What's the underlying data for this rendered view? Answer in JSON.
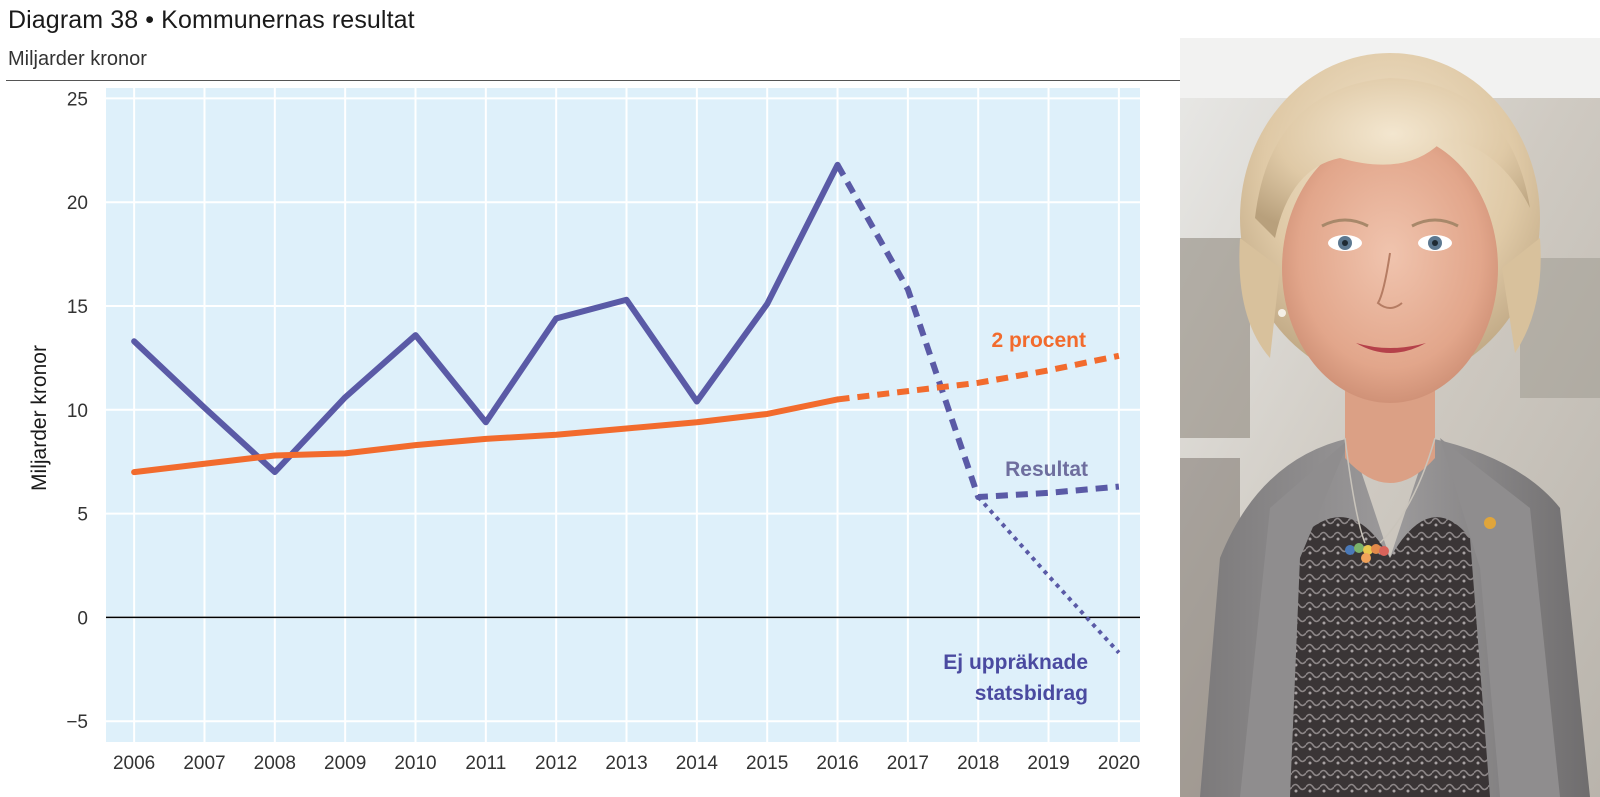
{
  "chart_data": {
    "type": "line",
    "title": "Diagram 38 • Kommunernas resultat",
    "subtitle": "Miljarder kronor",
    "ylabel": "Miljarder kronor",
    "xlabel": "",
    "ylim": [
      -6,
      25.5
    ],
    "x": [
      2006,
      2007,
      2008,
      2009,
      2010,
      2011,
      2012,
      2013,
      2014,
      2015,
      2016,
      2017,
      2018,
      2019,
      2020
    ],
    "x_tick_labels": [
      "2006",
      "2007",
      "2008",
      "2009",
      "2010",
      "2011",
      "2012",
      "2013",
      "2014",
      "2015",
      "2016",
      "2017",
      "2018",
      "2019",
      "2020"
    ],
    "y_ticks": [
      -5,
      0,
      5,
      10,
      15,
      20,
      25
    ],
    "y_tick_labels": [
      "−5",
      "0",
      "5",
      "10",
      "15",
      "20",
      "25"
    ],
    "grid": true,
    "zero_line": true,
    "series": [
      {
        "name": "Resultat",
        "color": "#5a5aa6",
        "solid": {
          "x": [
            2006,
            2007,
            2008,
            2009,
            2010,
            2011,
            2012,
            2013,
            2014,
            2015,
            2016
          ],
          "y": [
            13.3,
            10.1,
            7.0,
            10.6,
            13.6,
            9.4,
            14.4,
            15.3,
            10.4,
            15.1,
            21.8
          ]
        },
        "dashed": {
          "x": [
            2016,
            2017,
            2018,
            2019,
            2020
          ],
          "y": [
            21.8,
            15.8,
            5.8,
            6.0,
            6.3
          ]
        }
      },
      {
        "name": "2 procent",
        "color": "#f26b2d",
        "solid": {
          "x": [
            2006,
            2007,
            2008,
            2009,
            2010,
            2011,
            2012,
            2013,
            2014,
            2015,
            2016
          ],
          "y": [
            7.0,
            7.4,
            7.8,
            7.9,
            8.3,
            8.6,
            8.8,
            9.1,
            9.4,
            9.8,
            10.5
          ]
        },
        "dashed": {
          "x": [
            2016,
            2017,
            2018,
            2019,
            2020
          ],
          "y": [
            10.5,
            10.9,
            11.3,
            11.9,
            12.6
          ]
        }
      },
      {
        "name": "Ej uppräknade statsbidrag",
        "color": "#5a5aa6",
        "dotted": {
          "x": [
            2018,
            2019,
            2020
          ],
          "y": [
            5.8,
            2.0,
            -1.7
          ]
        }
      }
    ],
    "annotations": [
      {
        "text": "2 procent",
        "color": "#f26b2d"
      },
      {
        "text": "Resultat",
        "color": "#6e6e9e"
      },
      {
        "text": "Ej uppräknade",
        "color": "#4a4aa0"
      },
      {
        "text": "statsbidrag",
        "color": "#4a4aa0"
      }
    ],
    "colors": {
      "plot_bg": "#def0fa",
      "grid": "#ffffff",
      "axis": "#000000",
      "tick_text": "#333333"
    }
  },
  "photo": {
    "subject": "portrait photo of a woman with short blonde hair in a grey blazer"
  }
}
